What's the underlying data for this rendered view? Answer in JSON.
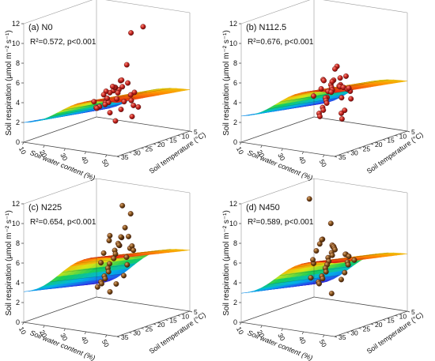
{
  "figure": {
    "colors": {
      "frame": "#333333",
      "text": "#111111",
      "point_warm": "#c0201c",
      "point_brown": "#7a4a16",
      "surface_low": "#4b1aa0",
      "surface_high": "#e8141a"
    }
  },
  "chart_data": [
    {
      "type": "scatter",
      "subtype": "3d-scatter-with-fitted-surface",
      "panel_label": "(a) N0",
      "stats": "R²=0.572, p<0.001",
      "zlabel": "Soil respiration (μmol m⁻² s⁻¹)",
      "xlabel": "Soil water content (%)",
      "ylabel": "Soil temperature (°C)",
      "z_ticks": [
        "0",
        "2",
        "4",
        "6",
        "8",
        "10",
        "12"
      ],
      "x_ticks": [
        "10",
        "20",
        "30",
        "40",
        "50"
      ],
      "y_ticks": [
        "5",
        "10",
        "15",
        "20",
        "25",
        "30",
        "35"
      ],
      "zlim": [
        0,
        12
      ],
      "xlim": [
        10,
        55
      ],
      "ylim": [
        5,
        35
      ],
      "point_color": "red",
      "surface": {
        "z_min": 0.5,
        "z_max": 5.5
      },
      "points": [
        {
          "x": 50,
          "y": 20,
          "z": 11.7
        },
        {
          "x": 50,
          "y": 25,
          "z": 11.5
        },
        {
          "x": 48,
          "y": 25,
          "z": 8.2
        },
        {
          "x": 45,
          "y": 25,
          "z": 6.5
        },
        {
          "x": 42,
          "y": 22,
          "z": 6.2
        },
        {
          "x": 45,
          "y": 22,
          "z": 6.0
        },
        {
          "x": 40,
          "y": 20,
          "z": 5.3
        },
        {
          "x": 38,
          "y": 22,
          "z": 5.0
        },
        {
          "x": 36,
          "y": 18,
          "z": 4.7
        },
        {
          "x": 40,
          "y": 15,
          "z": 4.3
        },
        {
          "x": 34,
          "y": 20,
          "z": 4.5
        },
        {
          "x": 32,
          "y": 15,
          "z": 4.0
        },
        {
          "x": 30,
          "y": 18,
          "z": 3.5
        },
        {
          "x": 28,
          "y": 12,
          "z": 3.0
        },
        {
          "x": 26,
          "y": 15,
          "z": 2.8
        },
        {
          "x": 24,
          "y": 12,
          "z": 2.5
        },
        {
          "x": 22,
          "y": 14,
          "z": 2.2
        },
        {
          "x": 20,
          "y": 10,
          "z": 2.0
        },
        {
          "x": 18,
          "y": 12,
          "z": 1.8
        },
        {
          "x": 16,
          "y": 10,
          "z": 1.5
        },
        {
          "x": 30,
          "y": 12,
          "z": 2.0
        },
        {
          "x": 35,
          "y": 15,
          "z": 3.2
        },
        {
          "x": 42,
          "y": 18,
          "z": 3.8
        },
        {
          "x": 44,
          "y": 20,
          "z": 4.6
        },
        {
          "x": 38,
          "y": 25,
          "z": 5.2
        },
        {
          "x": 46,
          "y": 28,
          "z": 6.1
        },
        {
          "x": 33,
          "y": 10,
          "z": 1.2
        },
        {
          "x": 25,
          "y": 10,
          "z": 0.5
        },
        {
          "x": 20,
          "y": 8,
          "z": 1.0
        },
        {
          "x": 36,
          "y": 12,
          "z": 2.6
        },
        {
          "x": 28,
          "y": 16,
          "z": 3.4
        },
        {
          "x": 24,
          "y": 18,
          "z": 3.1
        },
        {
          "x": 41,
          "y": 24,
          "z": 5.6
        },
        {
          "x": 47,
          "y": 30,
          "z": 6.4
        },
        {
          "x": 43,
          "y": 16,
          "z": 3.0
        },
        {
          "x": 31,
          "y": 20,
          "z": 4.2
        }
      ]
    },
    {
      "type": "scatter",
      "subtype": "3d-scatter-with-fitted-surface",
      "panel_label": "(b) N112.5",
      "stats": "R²=0.676, p<0.001",
      "zlabel": "Soil respiration (μmol m⁻² s⁻¹)",
      "xlabel": "Soil water content (%)",
      "ylabel": "Soil temperature (°C)",
      "z_ticks": [
        "0",
        "2",
        "4",
        "6",
        "8",
        "10",
        "12"
      ],
      "x_ticks": [
        "10",
        "20",
        "30",
        "40",
        "50"
      ],
      "y_ticks": [
        "5",
        "10",
        "15",
        "20",
        "25",
        "30",
        "35"
      ],
      "zlim": [
        0,
        12
      ],
      "xlim": [
        10,
        55
      ],
      "ylim": [
        5,
        35
      ],
      "point_color": "red",
      "surface": {
        "z_min": 1.0,
        "z_max": 6.5
      },
      "points": [
        {
          "x": 48,
          "y": 28,
          "z": 8.3
        },
        {
          "x": 47,
          "y": 28,
          "z": 8.0
        },
        {
          "x": 50,
          "y": 26,
          "z": 7.2
        },
        {
          "x": 46,
          "y": 25,
          "z": 6.8
        },
        {
          "x": 44,
          "y": 26,
          "z": 6.6
        },
        {
          "x": 45,
          "y": 24,
          "z": 6.0
        },
        {
          "x": 42,
          "y": 22,
          "z": 5.6
        },
        {
          "x": 40,
          "y": 20,
          "z": 5.3
        },
        {
          "x": 38,
          "y": 22,
          "z": 5.6
        },
        {
          "x": 36,
          "y": 20,
          "z": 5.1
        },
        {
          "x": 34,
          "y": 18,
          "z": 4.6
        },
        {
          "x": 32,
          "y": 18,
          "z": 4.4
        },
        {
          "x": 30,
          "y": 15,
          "z": 4.0
        },
        {
          "x": 28,
          "y": 15,
          "z": 3.4
        },
        {
          "x": 26,
          "y": 14,
          "z": 3.2
        },
        {
          "x": 24,
          "y": 12,
          "z": 2.7
        },
        {
          "x": 22,
          "y": 10,
          "z": 2.2
        },
        {
          "x": 20,
          "y": 10,
          "z": 1.7
        },
        {
          "x": 18,
          "y": 8,
          "z": 1.2
        },
        {
          "x": 16,
          "y": 8,
          "z": 0.8
        },
        {
          "x": 35,
          "y": 15,
          "z": 3.6
        },
        {
          "x": 43,
          "y": 18,
          "z": 4.0
        },
        {
          "x": 41,
          "y": 24,
          "z": 6.2
        },
        {
          "x": 39,
          "y": 26,
          "z": 6.5
        },
        {
          "x": 37,
          "y": 16,
          "z": 4.8
        },
        {
          "x": 45,
          "y": 20,
          "z": 5.0
        },
        {
          "x": 33,
          "y": 12,
          "z": 2.0
        },
        {
          "x": 29,
          "y": 10,
          "z": 1.4
        },
        {
          "x": 46,
          "y": 22,
          "z": 5.4
        },
        {
          "x": 31,
          "y": 20,
          "z": 4.8
        },
        {
          "x": 25,
          "y": 18,
          "z": 3.7
        },
        {
          "x": 21,
          "y": 12,
          "z": 1.0
        },
        {
          "x": 44,
          "y": 30,
          "z": 6.9
        },
        {
          "x": 49,
          "y": 24,
          "z": 5.8
        },
        {
          "x": 27,
          "y": 8,
          "z": 0.6
        }
      ]
    },
    {
      "type": "scatter",
      "subtype": "3d-scatter-with-fitted-surface",
      "panel_label": "(c) N225",
      "stats": "R²=0.654, p<0.001",
      "zlabel": "Soil respiration (μmol m⁻² s⁻¹)",
      "xlabel": "Soil water content (%)",
      "ylabel": "Soil temperature (°C)",
      "z_ticks": [
        "0",
        "2",
        "4",
        "6",
        "8",
        "10",
        "12"
      ],
      "x_ticks": [
        "10",
        "20",
        "30",
        "40",
        "50"
      ],
      "y_ticks": [
        "5",
        "10",
        "15",
        "20",
        "25",
        "30",
        "35"
      ],
      "zlim": [
        0,
        12
      ],
      "xlim": [
        10,
        55
      ],
      "ylim": [
        5,
        35
      ],
      "point_color": "brown",
      "surface": {
        "z_min": 1.0,
        "z_max": 8.0
      },
      "points": [
        {
          "x": 40,
          "y": 20,
          "z": 11.5
        },
        {
          "x": 44,
          "y": 20,
          "z": 10.8
        },
        {
          "x": 46,
          "y": 24,
          "z": 9.8
        },
        {
          "x": 50,
          "y": 26,
          "z": 9.2
        },
        {
          "x": 42,
          "y": 22,
          "z": 8.5
        },
        {
          "x": 48,
          "y": 28,
          "z": 8.4
        },
        {
          "x": 38,
          "y": 20,
          "z": 7.6
        },
        {
          "x": 36,
          "y": 18,
          "z": 7.2
        },
        {
          "x": 34,
          "y": 18,
          "z": 6.6
        },
        {
          "x": 32,
          "y": 16,
          "z": 6.0
        },
        {
          "x": 30,
          "y": 15,
          "z": 5.4
        },
        {
          "x": 28,
          "y": 15,
          "z": 4.8
        },
        {
          "x": 26,
          "y": 14,
          "z": 4.2
        },
        {
          "x": 24,
          "y": 12,
          "z": 3.6
        },
        {
          "x": 22,
          "y": 12,
          "z": 3.1
        },
        {
          "x": 20,
          "y": 10,
          "z": 2.6
        },
        {
          "x": 18,
          "y": 10,
          "z": 2.2
        },
        {
          "x": 16,
          "y": 8,
          "z": 1.8
        },
        {
          "x": 14,
          "y": 8,
          "z": 1.4
        },
        {
          "x": 20,
          "y": 8,
          "z": 1.1
        },
        {
          "x": 36,
          "y": 22,
          "z": 8.0
        },
        {
          "x": 39,
          "y": 16,
          "z": 6.8
        },
        {
          "x": 44,
          "y": 24,
          "z": 8.8
        },
        {
          "x": 33,
          "y": 12,
          "z": 4.6
        },
        {
          "x": 29,
          "y": 10,
          "z": 3.2
        },
        {
          "x": 25,
          "y": 16,
          "z": 4.9
        },
        {
          "x": 41,
          "y": 26,
          "z": 9.0
        },
        {
          "x": 47,
          "y": 22,
          "z": 7.8
        },
        {
          "x": 35,
          "y": 14,
          "z": 5.6
        },
        {
          "x": 23,
          "y": 8,
          "z": 2.0
        },
        {
          "x": 31,
          "y": 20,
          "z": 6.4
        },
        {
          "x": 43,
          "y": 18,
          "z": 6.9
        }
      ]
    },
    {
      "type": "scatter",
      "subtype": "3d-scatter-with-fitted-surface",
      "panel_label": "(d) N450",
      "stats": "R²=0.589, p<0.001",
      "zlabel": "Soil respiration (μmol m⁻² s⁻¹)",
      "xlabel": "Soil water content (%)",
      "ylabel": "Soil temperature (°C)",
      "z_ticks": [
        "0",
        "2",
        "4",
        "6",
        "8",
        "10",
        "12"
      ],
      "x_ticks": [
        "10",
        "20",
        "30",
        "40",
        "50"
      ],
      "y_ticks": [
        "5",
        "10",
        "15",
        "20",
        "25",
        "30",
        "35"
      ],
      "zlim": [
        0,
        12
      ],
      "xlim": [
        10,
        55
      ],
      "ylim": [
        5,
        35
      ],
      "point_color": "brown",
      "surface": {
        "z_min": 1.0,
        "z_max": 7.5
      },
      "points": [
        {
          "x": 30,
          "y": 24,
          "z": 12.2
        },
        {
          "x": 38,
          "y": 22,
          "z": 9.8
        },
        {
          "x": 48,
          "y": 30,
          "z": 8.6
        },
        {
          "x": 46,
          "y": 28,
          "z": 8.2
        },
        {
          "x": 44,
          "y": 26,
          "z": 8.0
        },
        {
          "x": 42,
          "y": 24,
          "z": 7.6
        },
        {
          "x": 40,
          "y": 22,
          "z": 7.2
        },
        {
          "x": 50,
          "y": 26,
          "z": 7.4
        },
        {
          "x": 36,
          "y": 20,
          "z": 6.6
        },
        {
          "x": 34,
          "y": 18,
          "z": 6.1
        },
        {
          "x": 32,
          "y": 18,
          "z": 5.8
        },
        {
          "x": 30,
          "y": 16,
          "z": 5.2
        },
        {
          "x": 28,
          "y": 15,
          "z": 4.7
        },
        {
          "x": 26,
          "y": 14,
          "z": 4.2
        },
        {
          "x": 24,
          "y": 12,
          "z": 3.6
        },
        {
          "x": 22,
          "y": 12,
          "z": 3.1
        },
        {
          "x": 20,
          "y": 10,
          "z": 2.6
        },
        {
          "x": 18,
          "y": 10,
          "z": 2.2
        },
        {
          "x": 16,
          "y": 8,
          "z": 1.8
        },
        {
          "x": 22,
          "y": 8,
          "z": 1.0
        },
        {
          "x": 35,
          "y": 24,
          "z": 7.8
        },
        {
          "x": 39,
          "y": 16,
          "z": 5.4
        },
        {
          "x": 45,
          "y": 22,
          "z": 6.9
        },
        {
          "x": 33,
          "y": 12,
          "z": 3.8
        },
        {
          "x": 29,
          "y": 10,
          "z": 2.8
        },
        {
          "x": 25,
          "y": 18,
          "z": 5.0
        },
        {
          "x": 41,
          "y": 28,
          "z": 8.8
        },
        {
          "x": 47,
          "y": 20,
          "z": 6.2
        },
        {
          "x": 37,
          "y": 14,
          "z": 4.9
        },
        {
          "x": 27,
          "y": 20,
          "z": 5.6
        },
        {
          "x": 43,
          "y": 30,
          "z": 9.0
        },
        {
          "x": 49,
          "y": 24,
          "z": 7.0
        },
        {
          "x": 31,
          "y": 22,
          "z": 6.8
        },
        {
          "x": 19,
          "y": 14,
          "z": 3.0
        }
      ]
    }
  ]
}
